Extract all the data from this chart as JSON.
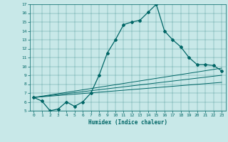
{
  "xlabel": "Humidex (Indice chaleur)",
  "ylabel": "",
  "background_color": "#c8e8e8",
  "line_color": "#006666",
  "xlim": [
    -0.5,
    23.5
  ],
  "ylim": [
    5,
    17
  ],
  "xticks": [
    0,
    1,
    2,
    3,
    4,
    5,
    6,
    7,
    8,
    9,
    10,
    11,
    12,
    13,
    14,
    15,
    16,
    17,
    18,
    19,
    20,
    21,
    22,
    23
  ],
  "yticks": [
    5,
    6,
    7,
    8,
    9,
    10,
    11,
    12,
    13,
    14,
    15,
    16,
    17
  ],
  "main_x": [
    0,
    1,
    2,
    3,
    4,
    5,
    6,
    7,
    8,
    9,
    10,
    11,
    12,
    13,
    14,
    15,
    16,
    17,
    18,
    19,
    20,
    21,
    22,
    23
  ],
  "main_y": [
    6.5,
    6.1,
    5.0,
    5.2,
    6.0,
    5.5,
    6.0,
    7.0,
    9.0,
    11.5,
    13.0,
    14.7,
    15.0,
    15.2,
    16.1,
    17.0,
    14.0,
    13.0,
    12.2,
    11.0,
    10.2,
    10.2,
    10.1,
    9.5
  ],
  "line2_x": [
    0,
    23
  ],
  "line2_y": [
    6.5,
    9.8
  ],
  "line3_x": [
    0,
    23
  ],
  "line3_y": [
    6.5,
    9.0
  ],
  "line4_x": [
    0,
    23
  ],
  "line4_y": [
    6.5,
    8.2
  ]
}
